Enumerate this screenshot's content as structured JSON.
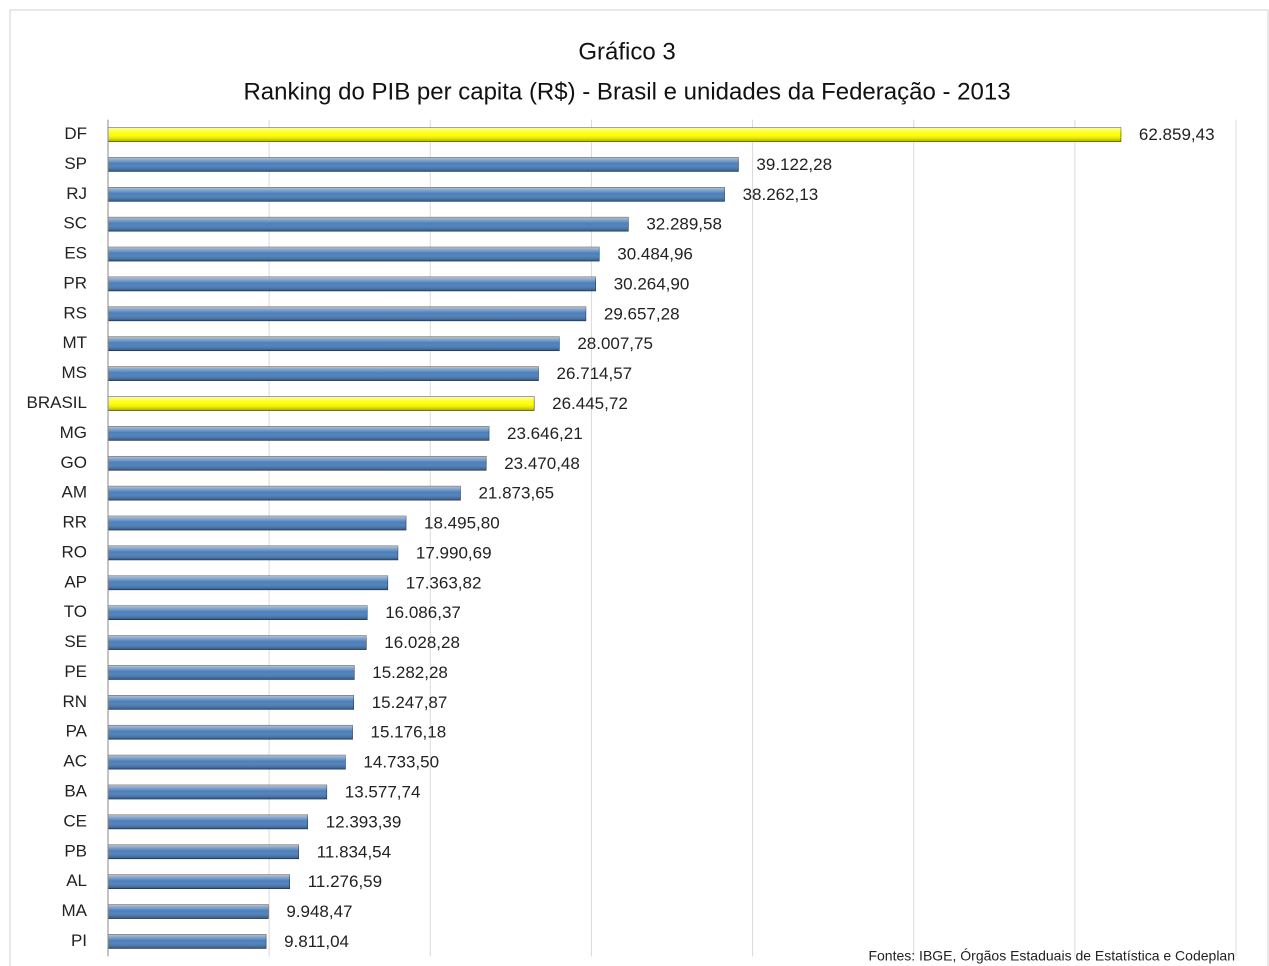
{
  "chart_data": {
    "type": "barh",
    "title": "Gráfico 3",
    "subtitle": "Ranking do PIB per capita (R$) - Brasil e unidades da Federação - 2013",
    "source": "Fontes:  IBGE, Órgãos Estaduais de Estatística e Codeplan",
    "categories": [
      "DF",
      "SP",
      "RJ",
      "SC",
      "ES",
      "PR",
      "RS",
      "MT",
      "MS",
      "BRASIL",
      "MG",
      "GO",
      "AM",
      "RR",
      "RO",
      "AP",
      "TO",
      "SE",
      "PE",
      "RN",
      "PA",
      "AC",
      "BA",
      "CE",
      "PB",
      "AL",
      "MA",
      "PI"
    ],
    "values": [
      62859.43,
      39122.28,
      38262.13,
      32289.58,
      30484.96,
      30264.9,
      29657.28,
      28007.75,
      26714.57,
      26445.72,
      23646.21,
      23470.48,
      21873.65,
      18495.8,
      17990.69,
      17363.82,
      16086.37,
      16028.28,
      15282.28,
      15247.87,
      15176.18,
      14733.5,
      13577.74,
      12393.39,
      11834.54,
      11276.59,
      9948.47,
      9811.04
    ],
    "value_labels": [
      "62.859,43",
      "39.122,28",
      "38.262,13",
      "32.289,58",
      "30.484,96",
      "30.264,90",
      "29.657,28",
      "28.007,75",
      "26.714,57",
      "26.445,72",
      "23.646,21",
      "23.470,48",
      "21.873,65",
      "18.495,80",
      "17.990,69",
      "17.363,82",
      "16.086,37",
      "16.028,28",
      "15.282,28",
      "15.247,87",
      "15.176,18",
      "14.733,50",
      "13.577,74",
      "12.393,39",
      "11.834,54",
      "11.276,59",
      "9.948,47",
      "9.811,04"
    ],
    "colors": [
      "#ffff00",
      "#4a7ebb",
      "#4a7ebb",
      "#4a7ebb",
      "#4a7ebb",
      "#4a7ebb",
      "#4a7ebb",
      "#4a7ebb",
      "#4a7ebb",
      "#ffff00",
      "#4a7ebb",
      "#4a7ebb",
      "#4a7ebb",
      "#4a7ebb",
      "#4a7ebb",
      "#4a7ebb",
      "#4a7ebb",
      "#4a7ebb",
      "#4a7ebb",
      "#4a7ebb",
      "#4a7ebb",
      "#4a7ebb",
      "#4a7ebb",
      "#4a7ebb",
      "#4a7ebb",
      "#4a7ebb",
      "#4a7ebb",
      "#4a7ebb"
    ],
    "xlim": [
      0,
      70000
    ],
    "xticks": [
      0,
      10000,
      20000,
      30000,
      40000,
      50000,
      60000,
      70000
    ],
    "grid": true
  }
}
